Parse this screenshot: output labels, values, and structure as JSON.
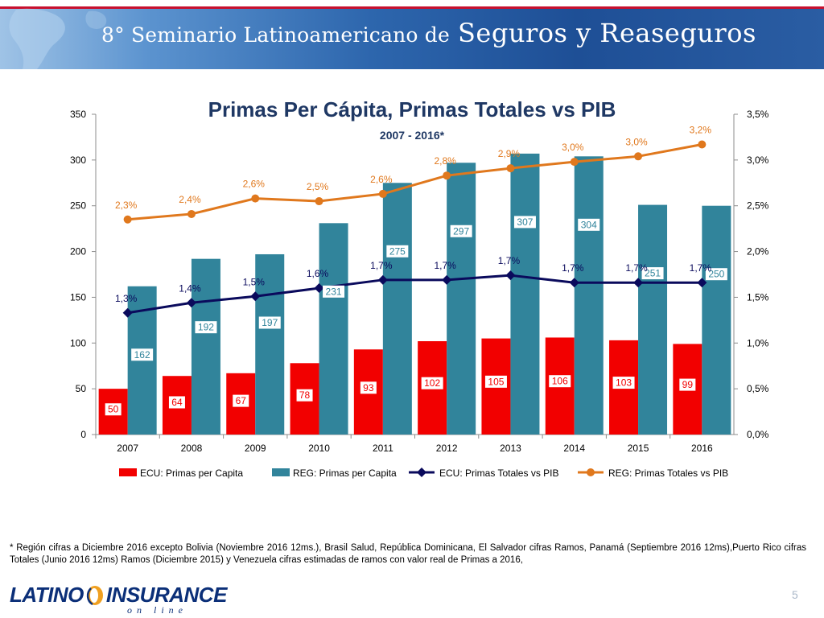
{
  "banner": {
    "title_prefix": "8° Seminario Latinoamericano de",
    "title_main": "Seguros y Reaseguros"
  },
  "colors": {
    "ecu_bar": "#f20000",
    "reg_bar": "#31849b",
    "ecu_line": "#0a0a5c",
    "reg_line": "#e0781d",
    "banner_blue": "#1e4f96",
    "title_blue": "#1f3864"
  },
  "chart_data": {
    "type": "bar",
    "title": "Primas Per Cápita, Primas Totales vs PIB",
    "subtitle": "2007 - 2016*",
    "categories": [
      "2007",
      "2008",
      "2009",
      "2010",
      "2011",
      "2012",
      "2013",
      "2014",
      "2015",
      "2016"
    ],
    "y_left": {
      "min": 0,
      "max": 350,
      "ticks": [
        "0",
        "50",
        "100",
        "150",
        "200",
        "250",
        "300",
        "350"
      ]
    },
    "y_right": {
      "min": 0,
      "max": 3.5,
      "ticks": [
        "0,0%",
        "0,5%",
        "1,0%",
        "1,5%",
        "2,0%",
        "2,5%",
        "3,0%",
        "3,5%"
      ]
    },
    "grid": false,
    "legend_position": "bottom",
    "series": [
      {
        "name": "ECU: Primas per Capita",
        "type": "bar",
        "axis": "left",
        "color": "#f20000",
        "values": [
          50,
          64,
          67,
          78,
          93,
          102,
          105,
          106,
          103,
          99
        ],
        "labels": [
          "50",
          "64",
          "67",
          "78",
          "93",
          "102",
          "105",
          "106",
          "103",
          "99"
        ]
      },
      {
        "name": "REG: Primas per Capita",
        "type": "bar",
        "axis": "left",
        "color": "#31849b",
        "values": [
          162,
          192,
          197,
          231,
          275,
          297,
          307,
          304,
          251,
          250
        ],
        "labels": [
          "162",
          "192",
          "197",
          "231",
          "275",
          "297",
          "307",
          "304",
          "251",
          "250"
        ]
      },
      {
        "name": "ECU: Primas Totales vs PIB",
        "type": "line",
        "axis": "right",
        "color": "#0a0a5c",
        "marker": "diamond",
        "values": [
          1.33,
          1.44,
          1.51,
          1.6,
          1.69,
          1.69,
          1.74,
          1.66,
          1.66,
          1.66
        ],
        "labels": [
          "1,3%",
          "1,4%",
          "1,5%",
          "1,6%",
          "1,7%",
          "1,7%",
          "1,7%",
          "1,7%",
          "1,7%",
          "1,7%"
        ]
      },
      {
        "name": "REG: Primas Totales vs PIB",
        "type": "line",
        "axis": "right",
        "color": "#e0781d",
        "marker": "circle",
        "values": [
          2.35,
          2.41,
          2.58,
          2.55,
          2.63,
          2.83,
          2.91,
          2.98,
          3.04,
          3.17
        ],
        "labels": [
          "2,3%",
          "2,4%",
          "2,6%",
          "2,5%",
          "2,6%",
          "2,8%",
          "2,9%",
          "3,0%",
          "3,0%",
          "3,2%"
        ]
      }
    ]
  },
  "footnote": "* Región cifras a Diciembre 2016 excepto Bolivia (Noviembre 2016 12ms.), Brasil Salud, República Dominicana, El Salvador cifras Ramos, Panamá (Septiembre 2016 12ms),Puerto Rico cifras Totales (Junio 2016 12ms) Ramos (Diciembre 2015) y Venezuela cifras estimadas de ramos con valor real de Primas a 2016,",
  "logo": {
    "left": "LATINO",
    "right": "INSURANCE",
    "sub": "on line"
  },
  "page_number": "5"
}
